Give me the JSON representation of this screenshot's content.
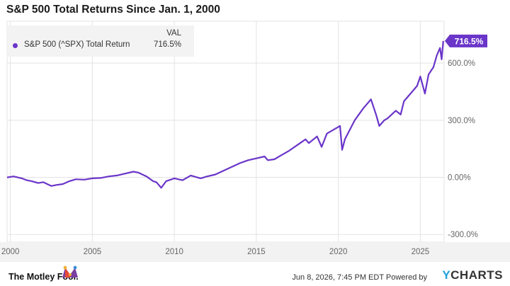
{
  "title": "S&P 500 Total Returns Since Jan. 1, 2000",
  "legend": {
    "header": "VAL",
    "series_name": "S&P 500 (^SPX) Total Return",
    "series_value": "716.5%"
  },
  "footer": {
    "logo_text": "The Motley Fool.",
    "timestamp": "Jun 8, 2026, 7:45 PM EDT",
    "powered_by": "Powered by",
    "brand_y": "Y",
    "brand_rest": "CHARTS"
  },
  "colors": {
    "series": "#6a35c9",
    "grid": "#e3e3e3",
    "axis_text": "#666666",
    "footer_bg": "#f2f2f2"
  },
  "chart_data": {
    "type": "line",
    "title": "S&P 500 Total Returns Since Jan. 1, 2000",
    "xlabel": "",
    "ylabel": "",
    "xlim": [
      1999.8,
      2026.45
    ],
    "ylim": [
      -340,
      820
    ],
    "x_ticks": [
      2000,
      2005,
      2010,
      2015,
      2020,
      2025
    ],
    "x_tick_labels": [
      "2000",
      "2005",
      "2010",
      "2015",
      "2020",
      "2025"
    ],
    "y_ticks": [
      -300,
      0,
      300,
      600
    ],
    "y_tick_labels": [
      "-300.0%",
      "0.00%",
      "300.0%",
      "600.0%"
    ],
    "end_label": "716.5%",
    "grid": true,
    "legend_position": "top-left",
    "series": [
      {
        "name": "S&P 500 (^SPX) Total Return",
        "x": [
          1999.8,
          2000.2,
          2000.7,
          2001.0,
          2001.3,
          2001.7,
          2002.0,
          2002.5,
          2002.8,
          2003.2,
          2003.6,
          2004.0,
          2004.5,
          2005.0,
          2005.5,
          2006.0,
          2006.5,
          2007.0,
          2007.5,
          2007.8,
          2008.3,
          2008.7,
          2008.9,
          2009.2,
          2009.5,
          2010.0,
          2010.5,
          2011.0,
          2011.6,
          2012.0,
          2012.5,
          2013.0,
          2013.5,
          2014.0,
          2014.5,
          2015.0,
          2015.5,
          2015.7,
          2016.1,
          2016.5,
          2017.0,
          2017.5,
          2018.0,
          2018.2,
          2018.7,
          2018.98,
          2019.3,
          2019.7,
          2020.1,
          2020.23,
          2020.4,
          2020.7,
          2021.0,
          2021.5,
          2021.99,
          2022.3,
          2022.5,
          2022.8,
          2023.0,
          2023.5,
          2023.8,
          2024.0,
          2024.5,
          2024.8,
          2025.0,
          2025.28,
          2025.5,
          2025.8,
          2026.0,
          2026.2,
          2026.3,
          2026.4
        ],
        "values": [
          0,
          5,
          -5,
          -15,
          -20,
          -30,
          -25,
          -45,
          -40,
          -35,
          -20,
          -10,
          -12,
          -5,
          -3,
          5,
          10,
          20,
          30,
          25,
          5,
          -20,
          -25,
          -55,
          -20,
          -5,
          -15,
          10,
          -5,
          5,
          15,
          35,
          55,
          75,
          90,
          100,
          110,
          90,
          95,
          115,
          140,
          170,
          200,
          180,
          215,
          160,
          230,
          250,
          270,
          145,
          200,
          250,
          300,
          360,
          410,
          330,
          270,
          300,
          310,
          350,
          330,
          400,
          450,
          480,
          530,
          440,
          540,
          580,
          640,
          680,
          620,
          716.5
        ]
      }
    ]
  }
}
